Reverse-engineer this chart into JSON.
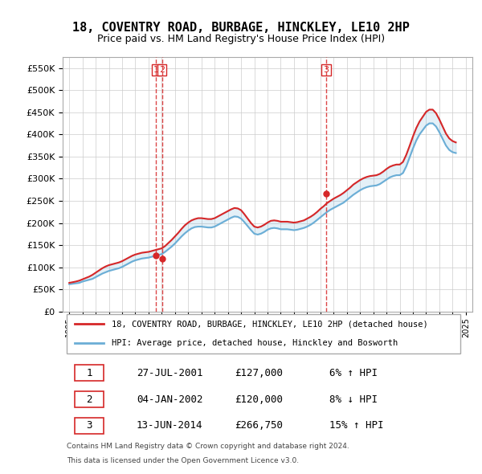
{
  "title": "18, COVENTRY ROAD, BURBAGE, HINCKLEY, LE10 2HP",
  "subtitle": "Price paid vs. HM Land Registry's House Price Index (HPI)",
  "legend_line1": "18, COVENTRY ROAD, BURBAGE, HINCKLEY, LE10 2HP (detached house)",
  "legend_line2": "HPI: Average price, detached house, Hinckley and Bosworth",
  "footer1": "Contains HM Land Registry data © Crown copyright and database right 2024.",
  "footer2": "This data is licensed under the Open Government Licence v3.0.",
  "transactions": [
    {
      "num": 1,
      "date": "27-JUL-2001",
      "price": "£127,000",
      "hpi": "6% ↑ HPI"
    },
    {
      "num": 2,
      "date": "04-JAN-2002",
      "price": "£120,000",
      "hpi": "8% ↓ HPI"
    },
    {
      "num": 3,
      "date": "13-JUN-2014",
      "price": "£266,750",
      "hpi": "15% ↑ HPI"
    }
  ],
  "vline_years": [
    2001.57,
    2002.01,
    2014.44
  ],
  "vline_labels": [
    "1",
    "2",
    "3"
  ],
  "price_marker_years": [
    2001.57,
    2002.01,
    2014.44
  ],
  "price_marker_values": [
    127000,
    120000,
    266750
  ],
  "hpi_color": "#6baed6",
  "price_color": "#d62728",
  "vline_color": "#d62728",
  "background_color": "#ffffff",
  "grid_color": "#cccccc",
  "ylim": [
    0,
    575000
  ],
  "yticks": [
    0,
    50000,
    100000,
    150000,
    200000,
    250000,
    300000,
    350000,
    400000,
    450000,
    500000,
    550000
  ],
  "hpi_data_years": [
    1995.0,
    1995.25,
    1995.5,
    1995.75,
    1996.0,
    1996.25,
    1996.5,
    1996.75,
    1997.0,
    1997.25,
    1997.5,
    1997.75,
    1998.0,
    1998.25,
    1998.5,
    1998.75,
    1999.0,
    1999.25,
    1999.5,
    1999.75,
    2000.0,
    2000.25,
    2000.5,
    2000.75,
    2001.0,
    2001.25,
    2001.5,
    2001.75,
    2002.0,
    2002.25,
    2002.5,
    2002.75,
    2003.0,
    2003.25,
    2003.5,
    2003.75,
    2004.0,
    2004.25,
    2004.5,
    2004.75,
    2005.0,
    2005.25,
    2005.5,
    2005.75,
    2006.0,
    2006.25,
    2006.5,
    2006.75,
    2007.0,
    2007.25,
    2007.5,
    2007.75,
    2008.0,
    2008.25,
    2008.5,
    2008.75,
    2009.0,
    2009.25,
    2009.5,
    2009.75,
    2010.0,
    2010.25,
    2010.5,
    2010.75,
    2011.0,
    2011.25,
    2011.5,
    2011.75,
    2012.0,
    2012.25,
    2012.5,
    2012.75,
    2013.0,
    2013.25,
    2013.5,
    2013.75,
    2014.0,
    2014.25,
    2014.5,
    2014.75,
    2015.0,
    2015.25,
    2015.5,
    2015.75,
    2016.0,
    2016.25,
    2016.5,
    2016.75,
    2017.0,
    2017.25,
    2017.5,
    2017.75,
    2018.0,
    2018.25,
    2018.5,
    2018.75,
    2019.0,
    2019.25,
    2019.5,
    2019.75,
    2020.0,
    2020.25,
    2020.5,
    2020.75,
    2021.0,
    2021.25,
    2021.5,
    2021.75,
    2022.0,
    2022.25,
    2022.5,
    2022.75,
    2023.0,
    2023.25,
    2023.5,
    2023.75,
    2024.0,
    2024.25
  ],
  "hpi_data_values": [
    62000,
    63000,
    64000,
    65000,
    68000,
    70000,
    72000,
    74000,
    78000,
    82000,
    86000,
    89000,
    92000,
    94000,
    96000,
    98000,
    101000,
    105000,
    109000,
    113000,
    116000,
    118000,
    120000,
    121000,
    122000,
    124000,
    126000,
    128000,
    130000,
    135000,
    141000,
    147000,
    154000,
    162000,
    170000,
    177000,
    183000,
    188000,
    191000,
    192000,
    192000,
    191000,
    190000,
    190000,
    192000,
    196000,
    200000,
    204000,
    208000,
    212000,
    215000,
    214000,
    210000,
    202000,
    193000,
    184000,
    176000,
    174000,
    176000,
    180000,
    185000,
    188000,
    189000,
    188000,
    186000,
    186000,
    186000,
    185000,
    184000,
    185000,
    187000,
    189000,
    192000,
    196000,
    201000,
    207000,
    213000,
    219000,
    225000,
    230000,
    234000,
    238000,
    242000,
    246000,
    252000,
    258000,
    264000,
    269000,
    274000,
    278000,
    281000,
    283000,
    284000,
    285000,
    288000,
    293000,
    298000,
    303000,
    306000,
    308000,
    308000,
    313000,
    328000,
    348000,
    368000,
    386000,
    400000,
    410000,
    420000,
    425000,
    425000,
    418000,
    405000,
    390000,
    375000,
    365000,
    360000,
    358000
  ],
  "price_data_years": [
    1995.0,
    1995.25,
    1995.5,
    1995.75,
    1996.0,
    1996.25,
    1996.5,
    1996.75,
    1997.0,
    1997.25,
    1997.5,
    1997.75,
    1998.0,
    1998.25,
    1998.5,
    1998.75,
    1999.0,
    1999.25,
    1999.5,
    1999.75,
    2000.0,
    2000.25,
    2000.5,
    2000.75,
    2001.0,
    2001.25,
    2001.5,
    2001.75,
    2002.0,
    2002.25,
    2002.5,
    2002.75,
    2003.0,
    2003.25,
    2003.5,
    2003.75,
    2004.0,
    2004.25,
    2004.5,
    2004.75,
    2005.0,
    2005.25,
    2005.5,
    2005.75,
    2006.0,
    2006.25,
    2006.5,
    2006.75,
    2007.0,
    2007.25,
    2007.5,
    2007.75,
    2008.0,
    2008.25,
    2008.5,
    2008.75,
    2009.0,
    2009.25,
    2009.5,
    2009.75,
    2010.0,
    2010.25,
    2010.5,
    2010.75,
    2011.0,
    2011.25,
    2011.5,
    2011.75,
    2012.0,
    2012.25,
    2012.5,
    2012.75,
    2013.0,
    2013.25,
    2013.5,
    2013.75,
    2014.0,
    2014.25,
    2014.5,
    2014.75,
    2015.0,
    2015.25,
    2015.5,
    2015.75,
    2016.0,
    2016.25,
    2016.5,
    2016.75,
    2017.0,
    2017.25,
    2017.5,
    2017.75,
    2018.0,
    2018.25,
    2018.5,
    2018.75,
    2019.0,
    2019.25,
    2019.5,
    2019.75,
    2020.0,
    2020.25,
    2020.5,
    2020.75,
    2021.0,
    2021.25,
    2021.5,
    2021.75,
    2022.0,
    2022.25,
    2022.5,
    2022.75,
    2023.0,
    2023.25,
    2023.5,
    2023.75,
    2024.0,
    2024.25
  ],
  "price_data_values": [
    65000,
    66500,
    68000,
    70000,
    73000,
    76000,
    79000,
    83000,
    88000,
    93000,
    98000,
    102000,
    105000,
    107000,
    109000,
    111000,
    114000,
    118000,
    122000,
    126000,
    129000,
    131000,
    133000,
    134000,
    135000,
    137000,
    139000,
    141000,
    143000,
    148000,
    155000,
    162000,
    170000,
    178000,
    187000,
    195000,
    201000,
    206000,
    209000,
    211000,
    211000,
    210000,
    209000,
    209000,
    211000,
    215000,
    219000,
    223000,
    227000,
    231000,
    234000,
    233000,
    229000,
    220000,
    210000,
    200000,
    192000,
    190000,
    192000,
    196000,
    201000,
    205000,
    206000,
    205000,
    203000,
    203000,
    203000,
    202000,
    201000,
    202000,
    204000,
    206000,
    210000,
    214000,
    219000,
    225000,
    232000,
    238000,
    245000,
    250000,
    255000,
    259000,
    263000,
    268000,
    274000,
    280000,
    287000,
    292000,
    297000,
    301000,
    304000,
    306000,
    307000,
    308000,
    311000,
    316000,
    322000,
    327000,
    330000,
    332000,
    332000,
    338000,
    354000,
    374000,
    395000,
    414000,
    429000,
    440000,
    451000,
    456000,
    456000,
    448000,
    434000,
    418000,
    402000,
    391000,
    385000,
    382000
  ]
}
